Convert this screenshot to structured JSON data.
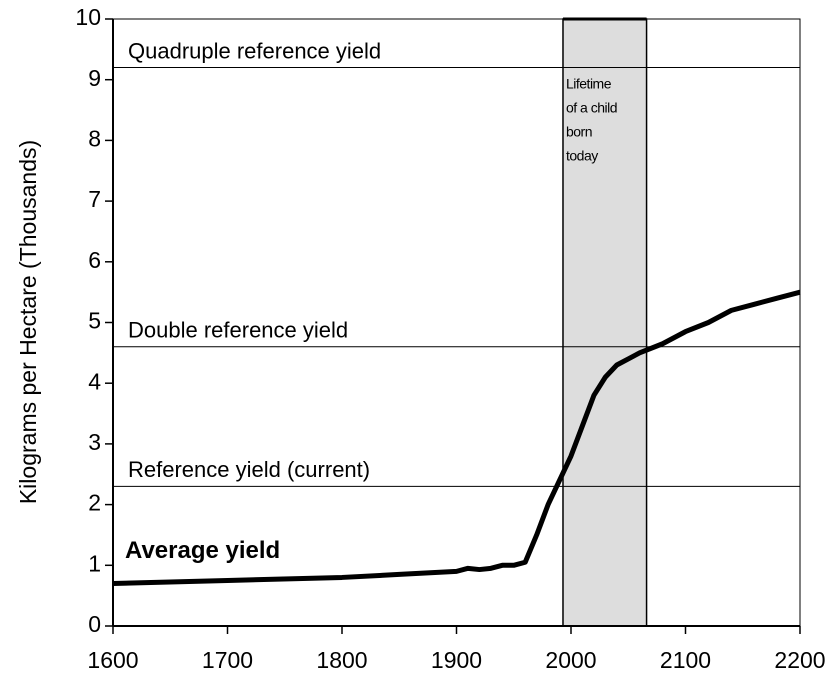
{
  "chart_data": {
    "type": "line",
    "y_label": "Kilograms per Hectare (Thousands)",
    "x": [
      1600,
      1700,
      1800,
      1850,
      1900,
      1910,
      1920,
      1930,
      1940,
      1950,
      1960,
      1970,
      1980,
      1990,
      2000,
      2010,
      2020,
      2030,
      2040,
      2050,
      2060,
      2080,
      2100,
      2120,
      2140,
      2160,
      2180,
      2200
    ],
    "series": [
      {
        "name": "Average yield",
        "color": "#000000",
        "values": [
          0.7,
          0.75,
          0.8,
          0.85,
          0.9,
          0.95,
          0.93,
          0.95,
          1.0,
          1.0,
          1.05,
          1.5,
          2.0,
          2.4,
          2.8,
          3.3,
          3.8,
          4.1,
          4.3,
          4.4,
          4.5,
          4.65,
          4.85,
          5.0,
          5.2,
          5.3,
          5.4,
          5.5
        ]
      }
    ],
    "xlim": [
      1600,
      2200
    ],
    "xticks": [
      1600,
      1700,
      1800,
      1900,
      2000,
      2100,
      2200
    ],
    "ylim": [
      0,
      10
    ],
    "yticks": [
      0,
      1,
      2,
      3,
      4,
      5,
      6,
      7,
      8,
      9,
      10
    ],
    "reference_lines": [
      {
        "label": "Reference yield (current)",
        "value": 2.3
      },
      {
        "label": "Double reference yield",
        "value": 4.6
      },
      {
        "label": "Quadruple reference yield",
        "value": 9.2
      }
    ],
    "shaded_band": {
      "x": [
        1993,
        2066
      ],
      "color": "#dddddd",
      "label_lines": [
        "Lifetime",
        "of a child",
        "born",
        "today"
      ]
    }
  }
}
